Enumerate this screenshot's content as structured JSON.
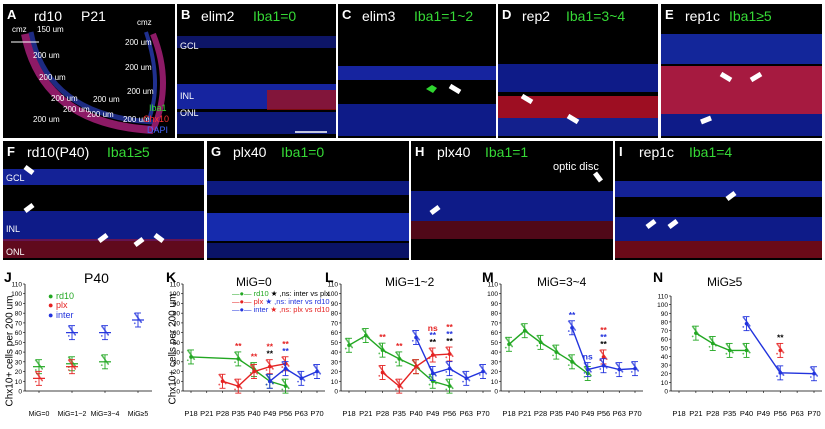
{
  "panels": {
    "A": {
      "letter": "A",
      "title1": "rd10",
      "title2": "P21",
      "scale": "150 um",
      "cmz_left": "cmz",
      "cmz_right": "cmz",
      "dist_labels": [
        "200 um",
        "200 um",
        "200 um",
        "200 um",
        "200 um",
        "200 um",
        "200 um",
        "200 um",
        "200 um",
        "200 um",
        "200 um"
      ],
      "legend": [
        "Iba1",
        "Chx10",
        "DAPI"
      ]
    },
    "B": {
      "letter": "B",
      "title_white": "elim2",
      "title_green": "Iba1=0",
      "layers": [
        "GCL",
        "INL",
        "ONL"
      ]
    },
    "C": {
      "letter": "C",
      "title_white": "elim3",
      "title_green": "Iba1=1~2"
    },
    "D": {
      "letter": "D",
      "title_white": "rep2",
      "title_green": "Iba1=3~4"
    },
    "E": {
      "letter": "E",
      "title_white": "rep1c",
      "title_green": "Iba1≥5"
    },
    "F": {
      "letter": "F",
      "title_white": "rd10(P40)",
      "title_green": "Iba1≥5",
      "layers": [
        "GCL",
        "INL",
        "ONL"
      ]
    },
    "G": {
      "letter": "G",
      "title_white": "plx40",
      "title_green": "Iba1=0"
    },
    "H": {
      "letter": "H",
      "title_white": "plx40",
      "title_green": "Iba1=1",
      "annotation": "optic disc"
    },
    "I": {
      "letter": "I",
      "title_white": "rep1c",
      "title_green": "Iba1=4"
    }
  },
  "colors": {
    "rd10": "#22a722",
    "plx": "#e52222",
    "inter": "#2233dd",
    "stars_black": "#000000"
  },
  "chart_data": [
    {
      "panel": "J",
      "type": "scatter",
      "title": "P40",
      "ylabel": "Chx10+ cells per 200 um",
      "ylim": [
        0,
        110
      ],
      "yticks": [
        0,
        10,
        20,
        30,
        40,
        50,
        60,
        70,
        80,
        90,
        100,
        110
      ],
      "categories": [
        "MiG=0",
        "MiG=1~2",
        "MiG=3~4",
        "MiG≥5"
      ],
      "legend": [
        "rd10",
        "plx",
        "inter"
      ],
      "series": [
        {
          "name": "rd10",
          "values": [
            25,
            28,
            30,
            null
          ]
        },
        {
          "name": "plx",
          "values": [
            13,
            25,
            null,
            null
          ]
        },
        {
          "name": "inter",
          "values": [
            null,
            60,
            60,
            73
          ]
        }
      ]
    },
    {
      "panel": "K",
      "type": "line",
      "title": "MiG=0",
      "ylabel": "Chx10+ cells per 200 um",
      "ylim": [
        0,
        110
      ],
      "yticks": [
        0,
        10,
        20,
        30,
        40,
        50,
        60,
        70,
        80,
        90,
        100,
        110
      ],
      "categories": [
        "P18",
        "P21",
        "P28",
        "P35",
        "P40",
        "P49",
        "P56",
        "P63",
        "P70"
      ],
      "legend": [
        "rd10",
        "plx",
        "inter"
      ],
      "legend_notes": [
        "★ ,ns: inter vs plx",
        "★ ,ns: inter vs rd10",
        "★ ,ns: plx vs rd10"
      ],
      "series": [
        {
          "name": "rd10",
          "values": [
            35,
            null,
            null,
            33,
            22,
            10,
            5,
            null,
            null
          ]
        },
        {
          "name": "plx",
          "values": [
            null,
            null,
            10,
            5,
            20,
            25,
            28,
            null,
            null
          ]
        },
        {
          "name": "inter",
          "values": [
            null,
            null,
            null,
            null,
            null,
            10,
            23,
            13,
            20
          ]
        }
      ],
      "annotations": [
        {
          "x": "P35",
          "text": "**",
          "color": "red"
        },
        {
          "x": "P40",
          "text": "**",
          "color": "red"
        },
        {
          "x": "P49",
          "text": "**",
          "color": "black"
        },
        {
          "x": "P49",
          "text": "**",
          "color": "red"
        },
        {
          "x": "P56",
          "text": "**",
          "color": "blue"
        },
        {
          "x": "P56",
          "text": "**",
          "color": "red"
        }
      ]
    },
    {
      "panel": "L",
      "type": "line",
      "title": "MiG=1~2",
      "ylim": [
        0,
        110
      ],
      "yticks": [
        0,
        10,
        20,
        30,
        40,
        50,
        60,
        70,
        80,
        90,
        100,
        110
      ],
      "categories": [
        "P18",
        "P21",
        "P28",
        "P35",
        "P40",
        "P49",
        "P56",
        "P63",
        "P70"
      ],
      "series": [
        {
          "name": "rd10",
          "values": [
            47,
            57,
            42,
            33,
            25,
            10,
            5,
            null,
            null
          ]
        },
        {
          "name": "plx",
          "values": [
            null,
            null,
            19,
            5,
            25,
            37,
            38,
            null,
            null
          ]
        },
        {
          "name": "inter",
          "values": [
            null,
            null,
            null,
            null,
            55,
            18,
            23,
            13,
            20
          ]
        }
      ],
      "annotations": [
        {
          "x": "P28",
          "text": "**",
          "color": "red"
        },
        {
          "x": "P35",
          "text": "**",
          "color": "red"
        },
        {
          "x": "P49",
          "text": "**",
          "color": "black"
        },
        {
          "x": "P49",
          "text": "**",
          "color": "blue"
        },
        {
          "x": "P49",
          "text": "ns",
          "color": "red"
        },
        {
          "x": "P56",
          "text": "**",
          "color": "black"
        },
        {
          "x": "P56",
          "text": "**",
          "color": "blue"
        },
        {
          "x": "P56",
          "text": "**",
          "color": "red"
        }
      ]
    },
    {
      "panel": "M",
      "type": "line",
      "title": "MiG=3~4",
      "ylim": [
        0,
        110
      ],
      "yticks": [
        0,
        10,
        20,
        30,
        40,
        50,
        60,
        70,
        80,
        90,
        100,
        110
      ],
      "categories": [
        "P18",
        "P21",
        "P28",
        "P35",
        "P40",
        "P49",
        "P56",
        "P63",
        "P70"
      ],
      "series": [
        {
          "name": "rd10",
          "values": [
            48,
            62,
            50,
            40,
            30,
            18,
            null,
            null,
            null
          ]
        },
        {
          "name": "plx",
          "values": [
            null,
            null,
            null,
            null,
            null,
            null,
            35,
            null,
            null
          ]
        },
        {
          "name": "inter",
          "values": [
            null,
            null,
            null,
            null,
            65,
            22,
            26,
            22,
            23
          ]
        }
      ],
      "annotations": [
        {
          "x": "P40",
          "text": "**",
          "color": "blue"
        },
        {
          "x": "P49",
          "text": "ns",
          "color": "blue"
        },
        {
          "x": "P56",
          "text": "**",
          "color": "black"
        },
        {
          "x": "P56",
          "text": "**",
          "color": "blue"
        },
        {
          "x": "P56",
          "text": "**",
          "color": "red"
        }
      ]
    },
    {
      "panel": "N",
      "type": "line",
      "title": "MiG≥5",
      "ylim": [
        0,
        110
      ],
      "yticks": [
        0,
        10,
        20,
        30,
        40,
        50,
        60,
        70,
        80,
        90,
        100,
        110
      ],
      "categories": [
        "P18",
        "P21",
        "P28",
        "P35",
        "P40",
        "P49",
        "P56",
        "P63",
        "P70"
      ],
      "series": [
        {
          "name": "rd10",
          "values": [
            null,
            67,
            55,
            47,
            47,
            null,
            null,
            null,
            null
          ]
        },
        {
          "name": "plx",
          "values": [
            null,
            null,
            null,
            null,
            null,
            null,
            47,
            null,
            null
          ]
        },
        {
          "name": "inter",
          "values": [
            null,
            null,
            null,
            null,
            78,
            null,
            21,
            null,
            20
          ]
        }
      ],
      "annotations": [
        {
          "x": "P56",
          "text": "**",
          "color": "black"
        }
      ]
    }
  ]
}
